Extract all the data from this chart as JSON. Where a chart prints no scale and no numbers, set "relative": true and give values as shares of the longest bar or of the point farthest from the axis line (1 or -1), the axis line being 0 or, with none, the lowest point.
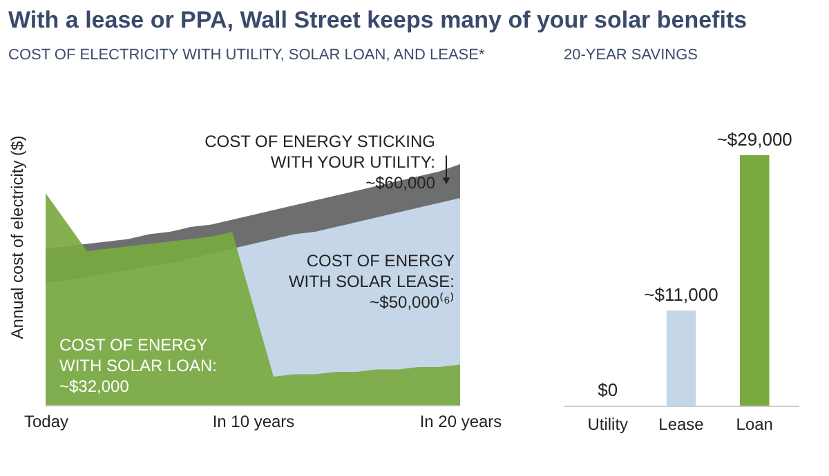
{
  "chart_data": [
    {
      "type": "area",
      "title": "With a lease or PPA, Wall Street keeps many of your solar benefits",
      "subtitle": "COST OF ELECTRICITY WITH UTILITY, SOLAR LOAN, AND LEASE*",
      "ylabel": "Annual cost of electricity ($)",
      "relative": true,
      "grid": false,
      "categories": [
        "Today",
        null,
        null,
        null,
        null,
        null,
        null,
        null,
        null,
        null,
        "In 10 years",
        null,
        null,
        null,
        null,
        null,
        null,
        null,
        null,
        null,
        "In 20 years"
      ],
      "series": [
        {
          "color": "#6d6e70",
          "values": [
            0.65,
            0.66,
            0.67,
            0.68,
            0.69,
            0.71,
            0.72,
            0.74,
            0.75,
            0.77,
            0.79,
            0.81,
            0.83,
            0.85,
            0.87,
            0.89,
            0.91,
            0.93,
            0.95,
            0.97,
            1.0
          ]
        },
        {
          "color": "#c6d6e9",
          "values": [
            0.51,
            0.52,
            0.53,
            0.55,
            0.56,
            0.58,
            0.59,
            0.61,
            0.63,
            0.65,
            0.67,
            0.69,
            0.71,
            0.72,
            0.74,
            0.76,
            0.78,
            0.8,
            0.82,
            0.84,
            0.86
          ]
        },
        {
          "color": "#7aa940",
          "values": [
            0.88,
            0.76,
            0.64,
            0.65,
            0.66,
            0.67,
            0.68,
            0.69,
            0.7,
            0.72,
            0.42,
            0.12,
            0.13,
            0.13,
            0.14,
            0.14,
            0.15,
            0.15,
            0.16,
            0.16,
            0.17
          ]
        }
      ],
      "annotations": [
        "COST OF ENERGY STICKING\nWITH YOUR UTILITY:\n~$60,000",
        "COST OF ENERGY\nWITH SOLAR LEASE:\n~$50,000⁽⁶⁾",
        "COST OF ENERGY\nWITH SOLAR LOAN:\n~$32,000"
      ]
    },
    {
      "type": "bar",
      "title": "20-YEAR SAVINGS",
      "categories": [
        "Utility",
        "Lease",
        "Loan"
      ],
      "values": [
        0,
        11000,
        29000
      ],
      "colors": [
        "#6d6e70",
        "#c6d6e9",
        "#7aa940"
      ],
      "value_labels": [
        "$0",
        "~$11,000",
        "~$29,000"
      ]
    }
  ]
}
